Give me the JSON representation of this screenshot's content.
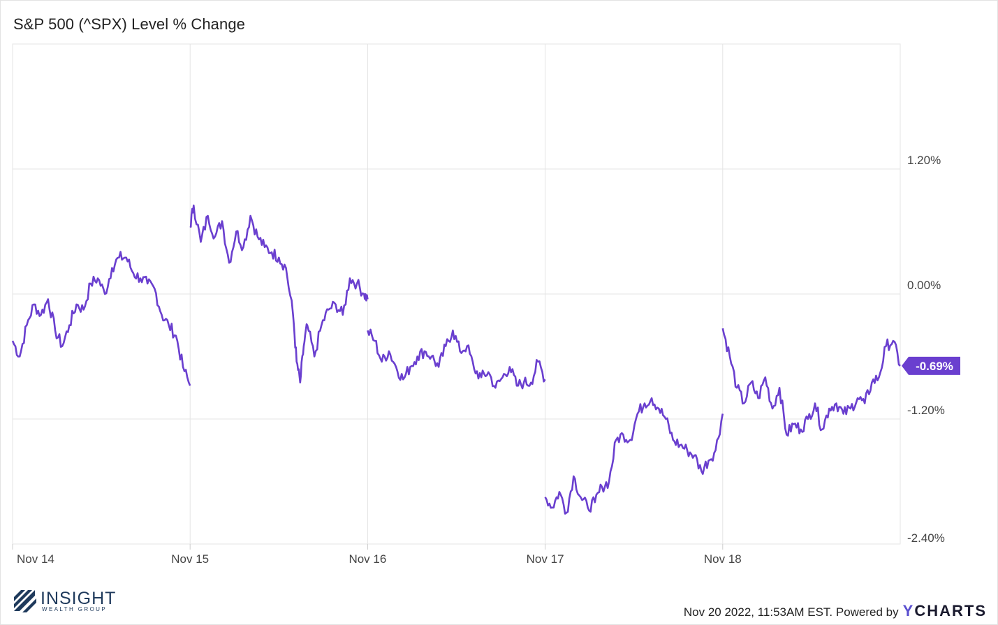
{
  "title": "S&P 500 (^SPX) Level % Change",
  "chart_data": {
    "type": "line",
    "ylim": [
      -2.4,
      2.4
    ],
    "yticks": [
      1.2,
      0.0,
      -1.2,
      -2.4
    ],
    "ytick_labels": [
      "1.20%",
      "0.00%",
      "-1.20%",
      "-2.40%"
    ],
    "x_days": [
      "Nov 14",
      "Nov 15",
      "Nov 16",
      "Nov 17",
      "Nov 18"
    ],
    "grid": true,
    "series": [
      {
        "color": "#6a3fcf",
        "last_value_label": "-0.69%",
        "last_value": -0.69,
        "segments": [
          {
            "day": "Nov 14",
            "x": [
              0.0,
              0.04,
              0.08,
              0.12,
              0.16,
              0.2,
              0.24,
              0.28,
              0.32,
              0.36,
              0.4,
              0.44,
              0.48,
              0.52,
              0.56,
              0.6,
              0.64,
              0.68,
              0.72,
              0.76,
              0.8,
              0.84,
              0.88,
              0.92,
              0.96,
              1.0
            ],
            "y": [
              -0.45,
              -0.6,
              -0.3,
              -0.1,
              -0.2,
              -0.05,
              -0.35,
              -0.5,
              -0.3,
              -0.1,
              -0.15,
              0.1,
              0.15,
              0.0,
              0.25,
              0.35,
              0.35,
              0.2,
              0.15,
              0.1,
              0.05,
              -0.2,
              -0.3,
              -0.4,
              -0.7,
              -0.88
            ]
          },
          {
            "day": "Nov 15",
            "x": [
              0.0,
              0.02,
              0.06,
              0.1,
              0.14,
              0.18,
              0.22,
              0.26,
              0.3,
              0.34,
              0.38,
              0.42,
              0.46,
              0.5,
              0.54,
              0.58,
              0.6,
              0.62,
              0.64,
              0.66,
              0.7,
              0.74,
              0.78,
              0.82,
              0.86,
              0.9,
              0.94,
              0.98,
              1.0
            ],
            "y": [
              0.65,
              0.85,
              0.5,
              0.75,
              0.55,
              0.7,
              0.3,
              0.6,
              0.45,
              0.75,
              0.55,
              0.45,
              0.4,
              0.35,
              0.25,
              -0.2,
              -0.65,
              -0.85,
              -0.5,
              -0.3,
              -0.6,
              -0.3,
              -0.15,
              -0.1,
              -0.2,
              0.15,
              0.1,
              0.0,
              -0.05
            ]
          },
          {
            "day": "Nov 16",
            "x": [
              0.0,
              0.04,
              0.08,
              0.12,
              0.16,
              0.2,
              0.24,
              0.28,
              0.32,
              0.36,
              0.4,
              0.44,
              0.48,
              0.52,
              0.56,
              0.6,
              0.64,
              0.68,
              0.72,
              0.76,
              0.8,
              0.84,
              0.88,
              0.92,
              0.96,
              1.0
            ],
            "y": [
              -0.35,
              -0.45,
              -0.65,
              -0.55,
              -0.7,
              -0.82,
              -0.7,
              -0.6,
              -0.55,
              -0.6,
              -0.7,
              -0.5,
              -0.35,
              -0.55,
              -0.5,
              -0.72,
              -0.8,
              -0.75,
              -0.9,
              -0.8,
              -0.7,
              -0.88,
              -0.85,
              -0.85,
              -0.65,
              -0.82
            ]
          },
          {
            "day": "Nov 17",
            "x": [
              0.0,
              0.04,
              0.08,
              0.12,
              0.16,
              0.2,
              0.24,
              0.28,
              0.32,
              0.36,
              0.4,
              0.44,
              0.48,
              0.52,
              0.56,
              0.6,
              0.64,
              0.68,
              0.72,
              0.76,
              0.8,
              0.84,
              0.88,
              0.92,
              0.96,
              1.0
            ],
            "y": [
              -1.95,
              -2.05,
              -1.9,
              -2.1,
              -1.75,
              -1.95,
              -2.05,
              -2.0,
              -1.85,
              -1.8,
              -1.4,
              -1.35,
              -1.4,
              -1.15,
              -1.05,
              -1.0,
              -1.1,
              -1.2,
              -1.4,
              -1.45,
              -1.5,
              -1.55,
              -1.7,
              -1.6,
              -1.5,
              -1.15
            ]
          },
          {
            "day": "Nov 18",
            "x": [
              0.0,
              0.04,
              0.08,
              0.12,
              0.16,
              0.2,
              0.24,
              0.28,
              0.32,
              0.36,
              0.4,
              0.44,
              0.48,
              0.52,
              0.56,
              0.6,
              0.64,
              0.68,
              0.72,
              0.76,
              0.8,
              0.84,
              0.88,
              0.92,
              0.96,
              1.0
            ],
            "y": [
              -0.33,
              -0.6,
              -0.9,
              -1.05,
              -0.85,
              -1.0,
              -0.8,
              -1.1,
              -0.9,
              -1.35,
              -1.25,
              -1.3,
              -1.2,
              -1.05,
              -1.3,
              -1.1,
              -1.05,
              -1.15,
              -1.1,
              -1.0,
              -1.05,
              -0.85,
              -0.8,
              -0.5,
              -0.45,
              -0.69
            ]
          }
        ]
      }
    ]
  },
  "logo": {
    "word": "INSIGHT",
    "sub": "WEALTH GROUP"
  },
  "footer": {
    "timestamp": "Nov 20 2022, 11:53AM EST. Powered by",
    "brand_y": "Y",
    "brand_rest": "CHARTS"
  }
}
